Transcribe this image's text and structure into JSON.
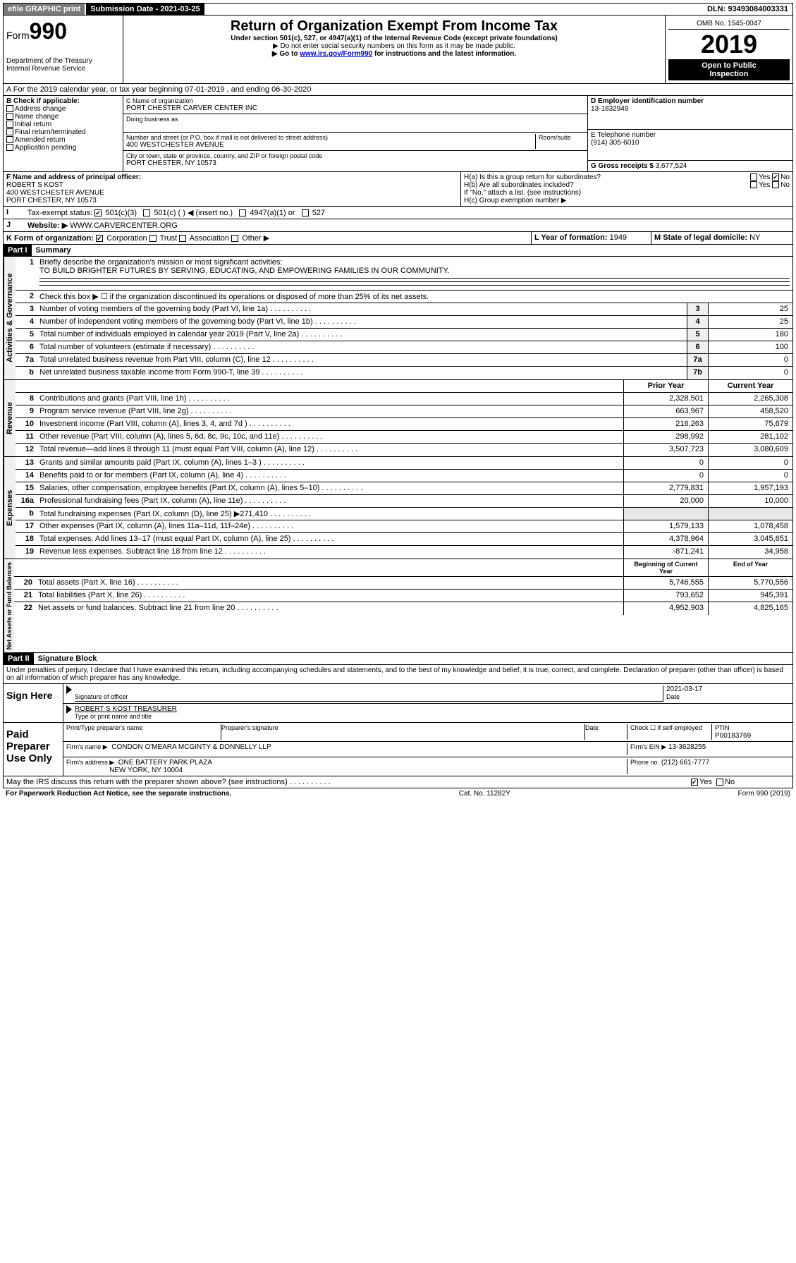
{
  "topbar": {
    "efile": "efile GRAPHIC print",
    "submission": "Submission Date - 2021-03-25",
    "dln": "DLN: 93493084003331"
  },
  "header": {
    "form_label": "Form",
    "form_num": "990",
    "dept": "Department of the Treasury",
    "irs": "Internal Revenue Service",
    "title": "Return of Organization Exempt From Income Tax",
    "sub1": "Under section 501(c), 527, or 4947(a)(1) of the Internal Revenue Code (except private foundations)",
    "sub2": "▶ Do not enter social security numbers on this form as it may be made public.",
    "sub3_pre": "▶ Go to ",
    "sub3_link": "www.irs.gov/Form990",
    "sub3_post": " for instructions and the latest information.",
    "omb": "OMB No. 1545-0047",
    "year": "2019",
    "inspect1": "Open to Public",
    "inspect2": "Inspection"
  },
  "row_a": "A For the 2019 calendar year, or tax year beginning 07-01-2019    , and ending 06-30-2020",
  "box_b": {
    "label": "B Check if applicable:",
    "opts": [
      "Address change",
      "Name change",
      "Initial return",
      "Final return/terminated",
      "Amended return",
      "Application pending"
    ]
  },
  "box_c": {
    "name_label": "C Name of organization",
    "name": "PORT CHESTER CARVER CENTER INC",
    "dba_label": "Doing business as",
    "addr_label": "Number and street (or P.O. box if mail is not delivered to street address)",
    "room_label": "Room/suite",
    "addr": "400 WESTCHESTER AVENUE",
    "city_label": "City or town, state or province, country, and ZIP or foreign postal code",
    "city": "PORT CHESTER, NY  10573"
  },
  "box_d": {
    "label": "D Employer identification number",
    "val": "13-1832949"
  },
  "box_e": {
    "label": "E Telephone number",
    "val": "(914) 305-6010"
  },
  "box_g": {
    "label": "G Gross receipts $",
    "val": "3,677,524"
  },
  "box_f": {
    "label": "F  Name and address of principal officer:",
    "name": "ROBERT S KOST",
    "addr1": "400 WESTCHESTER AVENUE",
    "addr2": "PORT CHESTER, NY  10573"
  },
  "box_h": {
    "a": "H(a)  Is this a group return for subordinates?",
    "b": "H(b)  Are all subordinates included?",
    "b_note": "If \"No,\" attach a list. (see instructions)",
    "c": "H(c)  Group exemption number ▶",
    "yes": "Yes",
    "no": "No"
  },
  "box_i": {
    "label": "Tax-exempt status:",
    "o1": "501(c)(3)",
    "o2": "501(c) (   ) ◀ (insert no.)",
    "o3": "4947(a)(1) or",
    "o4": "527"
  },
  "box_j": {
    "label": "Website: ▶",
    "val": "WWW.CARVERCENTER.ORG"
  },
  "box_k": {
    "label": "K Form of organization:",
    "o1": "Corporation",
    "o2": "Trust",
    "o3": "Association",
    "o4": "Other ▶"
  },
  "box_l": {
    "label": "L Year of formation:",
    "val": "1949"
  },
  "box_m": {
    "label": "M State of legal domicile:",
    "val": "NY"
  },
  "part1": {
    "hdr": "Part I",
    "title": "Summary",
    "side_act": "Activities & Governance",
    "side_rev": "Revenue",
    "side_exp": "Expenses",
    "side_net": "Net Assets or Fund Balances",
    "l1": "Briefly describe the organization's mission or most significant activities:",
    "l1v": "TO BUILD BRIGHTER FUTURES BY SERVING, EDUCATING, AND EMPOWERING FAMILIES IN OUR COMMUNITY.",
    "l2": "Check this box ▶ ☐  if the organization discontinued its operations or disposed of more than 25% of its net assets.",
    "lines_gov": [
      {
        "n": "3",
        "t": "Number of voting members of the governing body (Part VI, line 1a)",
        "b": "3",
        "v": "25"
      },
      {
        "n": "4",
        "t": "Number of independent voting members of the governing body (Part VI, line 1b)",
        "b": "4",
        "v": "25"
      },
      {
        "n": "5",
        "t": "Total number of individuals employed in calendar year 2019 (Part V, line 2a)",
        "b": "5",
        "v": "180"
      },
      {
        "n": "6",
        "t": "Total number of volunteers (estimate if necessary)",
        "b": "6",
        "v": "100"
      },
      {
        "n": "7a",
        "t": "Total unrelated business revenue from Part VIII, column (C), line 12",
        "b": "7a",
        "v": "0"
      },
      {
        "n": "b",
        "t": "Net unrelated business taxable income from Form 990-T, line 39",
        "b": "7b",
        "v": "0"
      }
    ],
    "col_prior": "Prior Year",
    "col_current": "Current Year",
    "lines_rev": [
      {
        "n": "8",
        "t": "Contributions and grants (Part VIII, line 1h)",
        "p": "2,328,501",
        "c": "2,265,308"
      },
      {
        "n": "9",
        "t": "Program service revenue (Part VIII, line 2g)",
        "p": "663,967",
        "c": "458,520"
      },
      {
        "n": "10",
        "t": "Investment income (Part VIII, column (A), lines 3, 4, and 7d )",
        "p": "216,263",
        "c": "75,679"
      },
      {
        "n": "11",
        "t": "Other revenue (Part VIII, column (A), lines 5, 6d, 8c, 9c, 10c, and 11e)",
        "p": "298,992",
        "c": "281,102"
      },
      {
        "n": "12",
        "t": "Total revenue—add lines 8 through 11 (must equal Part VIII, column (A), line 12)",
        "p": "3,507,723",
        "c": "3,080,609"
      }
    ],
    "lines_exp": [
      {
        "n": "13",
        "t": "Grants and similar amounts paid (Part IX, column (A), lines 1–3 )",
        "p": "0",
        "c": "0"
      },
      {
        "n": "14",
        "t": "Benefits paid to or for members (Part IX, column (A), line 4)",
        "p": "0",
        "c": "0"
      },
      {
        "n": "15",
        "t": "Salaries, other compensation, employee benefits (Part IX, column (A), lines 5–10)",
        "p": "2,779,831",
        "c": "1,957,193"
      },
      {
        "n": "16a",
        "t": "Professional fundraising fees (Part IX, column (A), line 11e)",
        "p": "20,000",
        "c": "10,000"
      },
      {
        "n": "b",
        "t": "Total fundraising expenses (Part IX, column (D), line 25) ▶271,410",
        "p": "",
        "c": ""
      },
      {
        "n": "17",
        "t": "Other expenses (Part IX, column (A), lines 11a–11d, 11f–24e)",
        "p": "1,579,133",
        "c": "1,078,458"
      },
      {
        "n": "18",
        "t": "Total expenses. Add lines 13–17 (must equal Part IX, column (A), line 25)",
        "p": "4,378,964",
        "c": "3,045,651"
      },
      {
        "n": "19",
        "t": "Revenue less expenses. Subtract line 18 from line 12",
        "p": "-871,241",
        "c": "34,958"
      }
    ],
    "col_begin": "Beginning of Current Year",
    "col_end": "End of Year",
    "lines_net": [
      {
        "n": "20",
        "t": "Total assets (Part X, line 16)",
        "p": "5,746,555",
        "c": "5,770,556"
      },
      {
        "n": "21",
        "t": "Total liabilities (Part X, line 26)",
        "p": "793,652",
        "c": "945,391"
      },
      {
        "n": "22",
        "t": "Net assets or fund balances. Subtract line 21 from line 20",
        "p": "4,952,903",
        "c": "4,825,165"
      }
    ]
  },
  "part2": {
    "hdr": "Part II",
    "title": "Signature Block",
    "perjury": "Under penalties of perjury, I declare that I have examined this return, including accompanying schedules and statements, and to the best of my knowledge and belief, it is true, correct, and complete. Declaration of preparer (other than officer) is based on all information of which preparer has any knowledge.",
    "sign_here": "Sign Here",
    "sig_officer": "Signature of officer",
    "date_label": "Date",
    "date_val": "2021-03-17",
    "name_title": "ROBERT S KOST TREASURER",
    "type_label": "Type or print name and title",
    "paid": "Paid Preparer Use Only",
    "prep_name_label": "Print/Type preparer's name",
    "prep_sig_label": "Preparer's signature",
    "prep_date_label": "Date",
    "check_self": "Check ☐ if self-employed",
    "ptin_label": "PTIN",
    "ptin": "P00183769",
    "firm_name_label": "Firm's name    ▶",
    "firm_name": "CONDON O'MEARA MCGINTY & DONNELLY LLP",
    "firm_ein_label": "Firm's EIN ▶",
    "firm_ein": "13-3628255",
    "firm_addr_label": "Firm's address ▶",
    "firm_addr1": "ONE BATTERY PARK PLAZA",
    "firm_addr2": "NEW YORK, NY  10004",
    "phone_label": "Phone no.",
    "phone": "(212) 661-7777",
    "discuss": "May the IRS discuss this return with the preparer shown above? (see instructions)",
    "yes": "Yes",
    "no": "No"
  },
  "footer": {
    "pra": "For Paperwork Reduction Act Notice, see the separate instructions.",
    "cat": "Cat. No. 11282Y",
    "form": "Form 990 (2019)"
  }
}
